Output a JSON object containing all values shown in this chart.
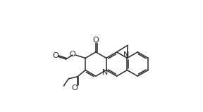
{
  "bg_color": "#ffffff",
  "line_color": "#2a2a2a",
  "line_width": 1.1,
  "figsize": [
    2.88,
    1.59
  ],
  "dpi": 100,
  "xlim": [
    0.0,
    9.5
  ],
  "ylim": [
    -0.5,
    5.8
  ]
}
